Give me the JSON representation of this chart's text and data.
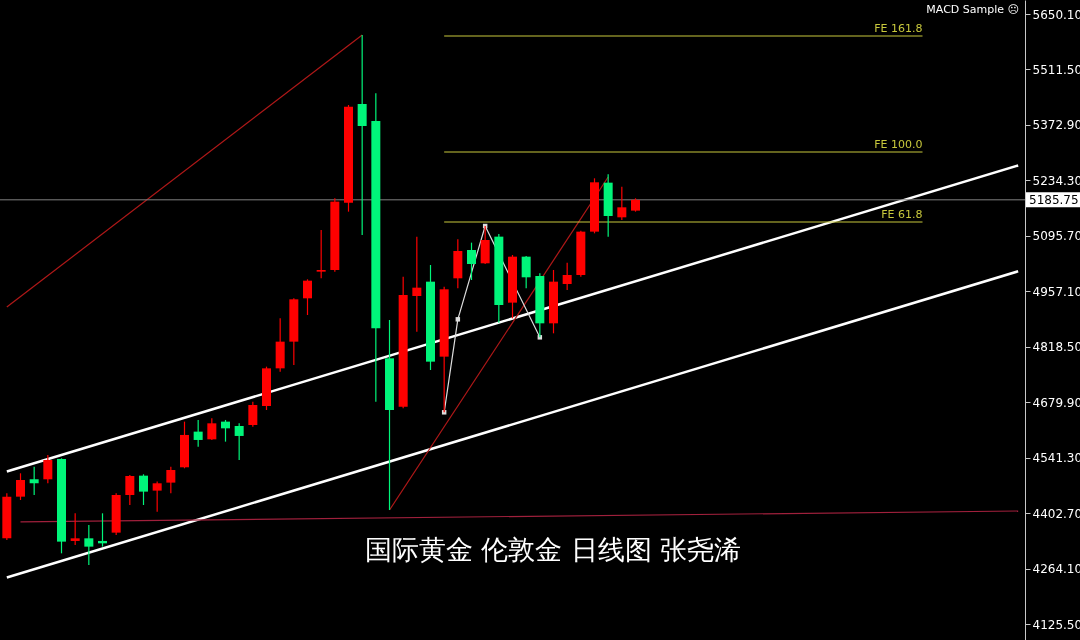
{
  "chart_data": {
    "type": "candlestick",
    "title": "国际黄金 伦敦金 日线图 张尧浠",
    "annotations": [
      "MACD Sample ☹"
    ],
    "categories": [
      null,
      null,
      null,
      null,
      null,
      null,
      null,
      null,
      null,
      null,
      null,
      null,
      null,
      null,
      null,
      null,
      null,
      null,
      null,
      null,
      null,
      null,
      null,
      null,
      null,
      null,
      null,
      null,
      null,
      null,
      null,
      null,
      null,
      null,
      null,
      null,
      null,
      null,
      null,
      null,
      null,
      null,
      null,
      null,
      null,
      null,
      null,
      null,
      null,
      null,
      null,
      null,
      null,
      null,
      null,
      null,
      null,
      null,
      null,
      null,
      null,
      null,
      null,
      null,
      null,
      null,
      null,
      null,
      null,
      null,
      null,
      null,
      null,
      null,
      null
    ],
    "ohlc": [
      [
        4339.8,
        4452.3,
        4335.7,
        4443.9
      ],
      [
        4443.9,
        4502.3,
        4435.6,
        4485.6
      ],
      [
        4487.3,
        4518.9,
        4448.1,
        4477.3
      ],
      [
        4487.3,
        4548.1,
        4477.3,
        4535.6
      ],
      [
        4538.1,
        4539.8,
        4302.3,
        4331.5
      ],
      [
        4333.2,
        4402.3,
        4323.2,
        4339.8
      ],
      [
        4339.8,
        4373.1,
        4273.2,
        4319.0
      ],
      [
        4333.2,
        4402.3,
        4319.0,
        4327.3
      ],
      [
        4354.0,
        4452.3,
        4348.2,
        4448.1
      ],
      [
        4448.1,
        4498.1,
        4423.1,
        4495.6
      ],
      [
        4496.4,
        4499.8,
        4423.1,
        4456.5
      ],
      [
        4459.0,
        4481.5,
        4406.5,
        4477.3
      ],
      [
        4479.0,
        4518.9,
        4452.3,
        4510.6
      ],
      [
        4517.3,
        4631.4,
        4514.8,
        4598.1
      ],
      [
        4606.4,
        4635.6,
        4568.9,
        4585.6
      ],
      [
        4587.2,
        4639.7,
        4585.6,
        4627.2
      ],
      [
        4631.4,
        4635.6,
        4581.4,
        4614.7
      ],
      [
        4620.5,
        4627.2,
        4535.6,
        4595.6
      ],
      [
        4623.1,
        4681.4,
        4618.9,
        4673.0
      ],
      [
        4670.5,
        4768.8,
        4660.5,
        4764.6
      ],
      [
        4764.6,
        4889.6,
        4756.3,
        4831.3
      ],
      [
        4831.3,
        4939.6,
        4773.0,
        4937.1
      ],
      [
        4939.6,
        4987.1,
        4897.9,
        4983.7
      ],
      [
        5006.2,
        5110.4,
        4989.6,
        5010.4
      ],
      [
        5010.4,
        5189.5,
        5006.2,
        5181.2
      ],
      [
        5178.7,
        5422.7,
        5156.2,
        5418.6
      ],
      [
        5425.2,
        5597.6,
        5097.9,
        5370.2
      ],
      [
        5382.7,
        5451.9,
        4681.4,
        4864.6
      ],
      [
        4789.6,
        4885.4,
        4410.6,
        4660.5
      ],
      [
        4668.9,
        4993.7,
        4664.7,
        4947.9
      ],
      [
        4945.4,
        5093.7,
        4856.3,
        4966.2
      ],
      [
        4981.2,
        5022.9,
        4760.5,
        4781.3
      ],
      [
        4793.8,
        4968.7,
        4654.7,
        4962.1
      ],
      [
        4989.6,
        5087.0,
        4964.6,
        5057.9
      ],
      [
        5060.4,
        5078.7,
        4985.4,
        5025.4
      ],
      [
        5027.1,
        5120.3,
        5025.4,
        5085.4
      ],
      [
        5093.7,
        5100.4,
        4878.8,
        4922.9
      ],
      [
        4928.8,
        5047.9,
        4889.6,
        5043.7
      ],
      [
        5043.7,
        5045.4,
        4964.6,
        4992.1
      ],
      [
        4995.4,
        5002.1,
        4842.1,
        4877.1
      ],
      [
        4877.1,
        5010.4,
        4852.1,
        4981.2
      ],
      [
        4975.4,
        5028.7,
        4960.4,
        4997.9
      ],
      [
        4997.9,
        5108.7,
        4993.7,
        5106.2
      ],
      [
        5106.2,
        5239.5,
        5102.0,
        5229.5
      ],
      [
        5228.6,
        5249.5,
        5093.7,
        5145.3
      ],
      [
        5142.0,
        5218.6,
        5135.3,
        5167.0
      ],
      [
        5158.7,
        5189.5,
        5156.2,
        5185.75
      ],
      null,
      null,
      null,
      null,
      null,
      null,
      null,
      null,
      null,
      null,
      null,
      null,
      null,
      null,
      null,
      null,
      null,
      null,
      null,
      null,
      null,
      null,
      null,
      null,
      null,
      null,
      null,
      null
    ],
    "colors": [
      "#ff0000",
      "#ff0000",
      "#00f57a",
      "#ff0000",
      "#00f57a",
      "#ff0000",
      "#00f57a",
      "#00f57a",
      "#ff0000",
      "#ff0000",
      "#00f57a",
      "#ff0000",
      "#ff0000",
      "#ff0000",
      "#00f57a",
      "#ff0000",
      "#00f57a",
      "#00f57a",
      "#ff0000",
      "#ff0000",
      "#ff0000",
      "#ff0000",
      "#ff0000",
      "#ff0000",
      "#ff0000",
      "#ff0000",
      "#00f57a",
      "#00f57a",
      "#00f57a",
      "#ff0000",
      "#ff0000",
      "#00f57a",
      "#ff0000",
      "#ff0000",
      "#00f57a",
      "#ff0000",
      "#00f57a",
      "#ff0000",
      "#00f57a",
      "#00f57a",
      "#ff0000",
      "#ff0000",
      "#ff0000",
      "#ff0000",
      "#00f57a",
      "#ff0000",
      "#ff0000",
      null,
      null,
      null,
      null,
      null,
      null,
      null,
      null,
      null,
      null,
      null,
      null,
      null,
      null,
      null,
      null,
      null,
      null,
      null,
      null,
      null,
      null,
      null,
      null,
      null,
      null,
      null,
      null
    ],
    "series": [
      {
        "type": "line",
        "color": "#ffffff",
        "values": [
          4506.8,
          null,
          null,
          null,
          null,
          null,
          null,
          null,
          null,
          null,
          null,
          null,
          null,
          null,
          null,
          null,
          null,
          null,
          null,
          null,
          null,
          null,
          null,
          null,
          null,
          null,
          null,
          null,
          null,
          null,
          null,
          null,
          null,
          null,
          null,
          null,
          null,
          null,
          null,
          null,
          null,
          null,
          null,
          null,
          null,
          null,
          null,
          null,
          null,
          null,
          null,
          null,
          null,
          null,
          null,
          null,
          null,
          null,
          null,
          null,
          null,
          null,
          null,
          null,
          null,
          null,
          null,
          null,
          null,
          null,
          null,
          null,
          null,
          null,
          5271.5
        ]
      },
      {
        "type": "line",
        "color": "#ffffff",
        "values": [
          4241.9,
          null,
          null,
          null,
          null,
          null,
          null,
          null,
          null,
          null,
          null,
          null,
          null,
          null,
          null,
          null,
          null,
          null,
          null,
          null,
          null,
          null,
          null,
          null,
          null,
          null,
          null,
          null,
          null,
          null,
          null,
          null,
          null,
          null,
          null,
          null,
          null,
          null,
          null,
          null,
          null,
          null,
          null,
          null,
          null,
          null,
          null,
          null,
          null,
          null,
          null,
          null,
          null,
          null,
          null,
          null,
          null,
          null,
          null,
          null,
          null,
          null,
          null,
          null,
          null,
          null,
          null,
          null,
          null,
          null,
          null,
          null,
          null,
          null,
          5007.1
        ]
      },
      {
        "type": "line",
        "color": "#b01818",
        "values": [
          4917.9,
          null,
          null,
          null,
          null,
          null,
          null,
          null,
          null,
          null,
          null,
          null,
          null,
          null,
          null,
          null,
          null,
          null,
          null,
          null,
          null,
          null,
          null,
          null,
          null,
          null,
          5597.6,
          null,
          null,
          null,
          null,
          null,
          null,
          null,
          null,
          null,
          null,
          null,
          null,
          null,
          null,
          null,
          null,
          null,
          null,
          null,
          null,
          null,
          null,
          null,
          null,
          null,
          null,
          null,
          null,
          null,
          null,
          null,
          null,
          null,
          null,
          null,
          null,
          null,
          null,
          null,
          null,
          null,
          null,
          null,
          null,
          null,
          null,
          null,
          null
        ]
      },
      {
        "type": "line",
        "color": "#b01818",
        "values": [
          null,
          null,
          null,
          null,
          null,
          null,
          null,
          null,
          null,
          null,
          null,
          null,
          null,
          null,
          null,
          null,
          null,
          null,
          null,
          null,
          null,
          null,
          null,
          null,
          null,
          null,
          null,
          null,
          4410.6,
          null,
          null,
          null,
          null,
          null,
          null,
          null,
          null,
          null,
          null,
          null,
          null,
          null,
          null,
          null,
          5242.7,
          null,
          null,
          null,
          null,
          null,
          null,
          null,
          null,
          null,
          null,
          null,
          null,
          null,
          null,
          null,
          null,
          null,
          null,
          null,
          null,
          null,
          null,
          null,
          null,
          null,
          null,
          null,
          null,
          null,
          null
        ]
      },
      {
        "type": "line",
        "color": "#a0203c",
        "values": [
          null,
          4381,
          null,
          null,
          null,
          null,
          null,
          null,
          null,
          null,
          null,
          null,
          null,
          null,
          null,
          null,
          null,
          null,
          null,
          null,
          null,
          null,
          null,
          null,
          null,
          null,
          null,
          null,
          null,
          null,
          null,
          null,
          null,
          null,
          null,
          null,
          null,
          null,
          null,
          null,
          null,
          null,
          null,
          null,
          null,
          null,
          null,
          null,
          null,
          null,
          null,
          null,
          null,
          null,
          null,
          null,
          null,
          null,
          null,
          null,
          null,
          null,
          null,
          null,
          null,
          null,
          null,
          null,
          null,
          null,
          null,
          null,
          null,
          null,
          4408.1
        ]
      },
      {
        "type": "line",
        "color": "#dddddd",
        "marker": "square",
        "values": [
          null,
          null,
          null,
          null,
          null,
          null,
          null,
          null,
          null,
          null,
          null,
          null,
          null,
          null,
          null,
          null,
          null,
          null,
          null,
          null,
          null,
          null,
          null,
          null,
          null,
          null,
          null,
          null,
          null,
          null,
          null,
          null,
          4654.7,
          4887.1,
          null,
          5120.3,
          null,
          null,
          null,
          4842.1,
          null,
          null,
          null,
          null,
          null,
          null,
          null,
          null,
          null,
          null,
          null,
          null,
          null,
          null,
          null,
          null,
          null,
          null,
          null,
          null,
          null,
          null,
          null,
          null,
          null,
          null,
          null,
          null,
          null,
          null,
          null,
          null,
          null,
          null,
          null
        ]
      },
      {
        "type": "line",
        "name": "FE 161.8",
        "color": "#c8c83c",
        "values": [
          null,
          null,
          null,
          null,
          null,
          null,
          null,
          null,
          null,
          null,
          null,
          null,
          null,
          null,
          null,
          null,
          null,
          null,
          null,
          null,
          null,
          null,
          null,
          null,
          null,
          null,
          null,
          null,
          null,
          null,
          null,
          null,
          5595.1,
          null,
          null,
          null,
          null,
          null,
          null,
          null,
          null,
          null,
          null,
          null,
          null,
          null,
          null,
          null,
          null,
          null,
          null,
          null,
          null,
          null,
          null,
          null,
          null,
          null,
          null,
          null,
          null,
          null,
          null,
          null,
          null,
          null,
          null,
          5595.1,
          null,
          null,
          null,
          null,
          null,
          null,
          null
        ]
      },
      {
        "type": "line",
        "name": "FE 100.0",
        "color": "#c8c83c",
        "values": [
          null,
          null,
          null,
          null,
          null,
          null,
          null,
          null,
          null,
          null,
          null,
          null,
          null,
          null,
          null,
          null,
          null,
          null,
          null,
          null,
          null,
          null,
          null,
          null,
          null,
          null,
          null,
          null,
          null,
          null,
          null,
          null,
          5305.2,
          null,
          null,
          null,
          null,
          null,
          null,
          null,
          null,
          null,
          null,
          null,
          null,
          null,
          null,
          null,
          null,
          null,
          null,
          null,
          null,
          null,
          null,
          null,
          null,
          null,
          null,
          null,
          null,
          null,
          null,
          null,
          null,
          null,
          null,
          5305.2,
          null,
          null,
          null,
          null,
          null,
          null,
          null
        ]
      },
      {
        "type": "line",
        "name": "FE 61.8",
        "color": "#c8c83c",
        "values": [
          null,
          null,
          null,
          null,
          null,
          null,
          null,
          null,
          null,
          null,
          null,
          null,
          null,
          null,
          null,
          null,
          null,
          null,
          null,
          null,
          null,
          null,
          null,
          null,
          null,
          null,
          null,
          null,
          null,
          null,
          null,
          null,
          5130.3,
          null,
          null,
          null,
          null,
          null,
          null,
          null,
          null,
          null,
          null,
          null,
          null,
          null,
          null,
          null,
          null,
          null,
          null,
          null,
          null,
          null,
          null,
          null,
          null,
          null,
          null,
          null,
          null,
          null,
          null,
          null,
          null,
          null,
          null,
          5130.3,
          null,
          null,
          null,
          null,
          null,
          null,
          null
        ]
      }
    ],
    "ref_lines": [
      {
        "axis": "y",
        "value": 5185.75,
        "label": "5185.75",
        "color": "#808080"
      }
    ],
    "ylim": [
      4085.7,
      5685.1
    ],
    "yticks": [
      {
        "value": 5650.1,
        "label": "5650.10"
      },
      {
        "value": 5511.5,
        "label": "5511.50"
      },
      {
        "value": 5372.9,
        "label": "5372.90"
      },
      {
        "value": 5234.3,
        "label": "5234.30"
      },
      {
        "value": 5095.7,
        "label": "5095.70"
      },
      {
        "value": 4957.1,
        "label": "4957.10"
      },
      {
        "value": 4818.5,
        "label": "4818.50"
      },
      {
        "value": 4679.9,
        "label": "4679.90"
      },
      {
        "value": 4541.3,
        "label": "4541.30"
      },
      {
        "value": 4402.7,
        "label": "4402.70"
      },
      {
        "value": 4264.1,
        "label": "4264.10"
      },
      {
        "value": 4125.5,
        "label": "4125.50"
      }
    ],
    "tick_labels": "y",
    "grid": false,
    "legend": false
  }
}
